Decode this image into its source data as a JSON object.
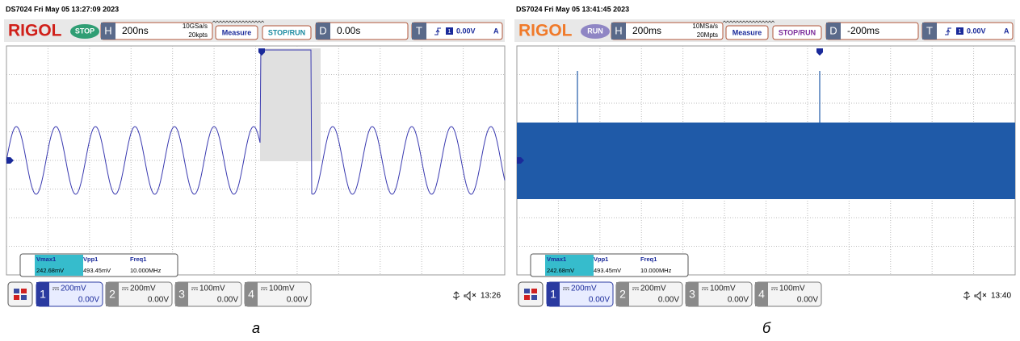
{
  "panels": [
    {
      "timestamp": "DS7024  Fri May 05 13:27:09 2023",
      "logo": "RIGOL",
      "status": "STOP",
      "timebase_label": "H",
      "timebase": "200ns",
      "sample_rate": "10GSa/s",
      "memory_depth": "20kpts",
      "measure": "Measure",
      "stop_run": "STOP/RUN",
      "delay_label": "D",
      "delay": "0.00s",
      "trigger_label": "T",
      "trigger_channel": "1",
      "trigger_level": "0.00V",
      "trigger_coupling": "A",
      "measurements": [
        {
          "name": "Vmax1",
          "value": "242.68mV"
        },
        {
          "name": "Vpp1",
          "value": "493.45mV"
        },
        {
          "name": "Freq1",
          "value": "10.000MHz"
        }
      ],
      "channels": [
        {
          "number": "1",
          "scale": "200mV",
          "offset": "0.00V"
        },
        {
          "number": "2",
          "scale": "200mV",
          "offset": "0.00V"
        },
        {
          "number": "3",
          "scale": "100mV",
          "offset": "0.00V"
        },
        {
          "number": "4",
          "scale": "100mV",
          "offset": "0.00V"
        }
      ],
      "clock": "13:26",
      "caption": "а"
    },
    {
      "timestamp": "DS7024  Fri May 05 13:41:45 2023",
      "logo": "RIGOL",
      "status": "RUN",
      "timebase_label": "H",
      "timebase": "200ms",
      "sample_rate": "10MSa/s",
      "memory_depth": "20Mpts",
      "measure": "Measure",
      "stop_run": "STOP/RUN",
      "delay_label": "D",
      "delay": "-200ms",
      "trigger_label": "T",
      "trigger_channel": "1",
      "trigger_level": "0.00V",
      "trigger_coupling": "A",
      "measurements": [
        {
          "name": "Vmax1",
          "value": "242.68mV"
        },
        {
          "name": "Vpp1",
          "value": "493.45mV"
        },
        {
          "name": "Freq1",
          "value": "10.000MHz"
        }
      ],
      "channels": [
        {
          "number": "1",
          "scale": "200mV",
          "offset": "0.00V"
        },
        {
          "number": "2",
          "scale": "200mV",
          "offset": "0.00V"
        },
        {
          "number": "3",
          "scale": "100mV",
          "offset": "0.00V"
        },
        {
          "number": "4",
          "scale": "100mV",
          "offset": "0.00V"
        }
      ],
      "clock": "13:40",
      "caption": "б"
    }
  ]
}
